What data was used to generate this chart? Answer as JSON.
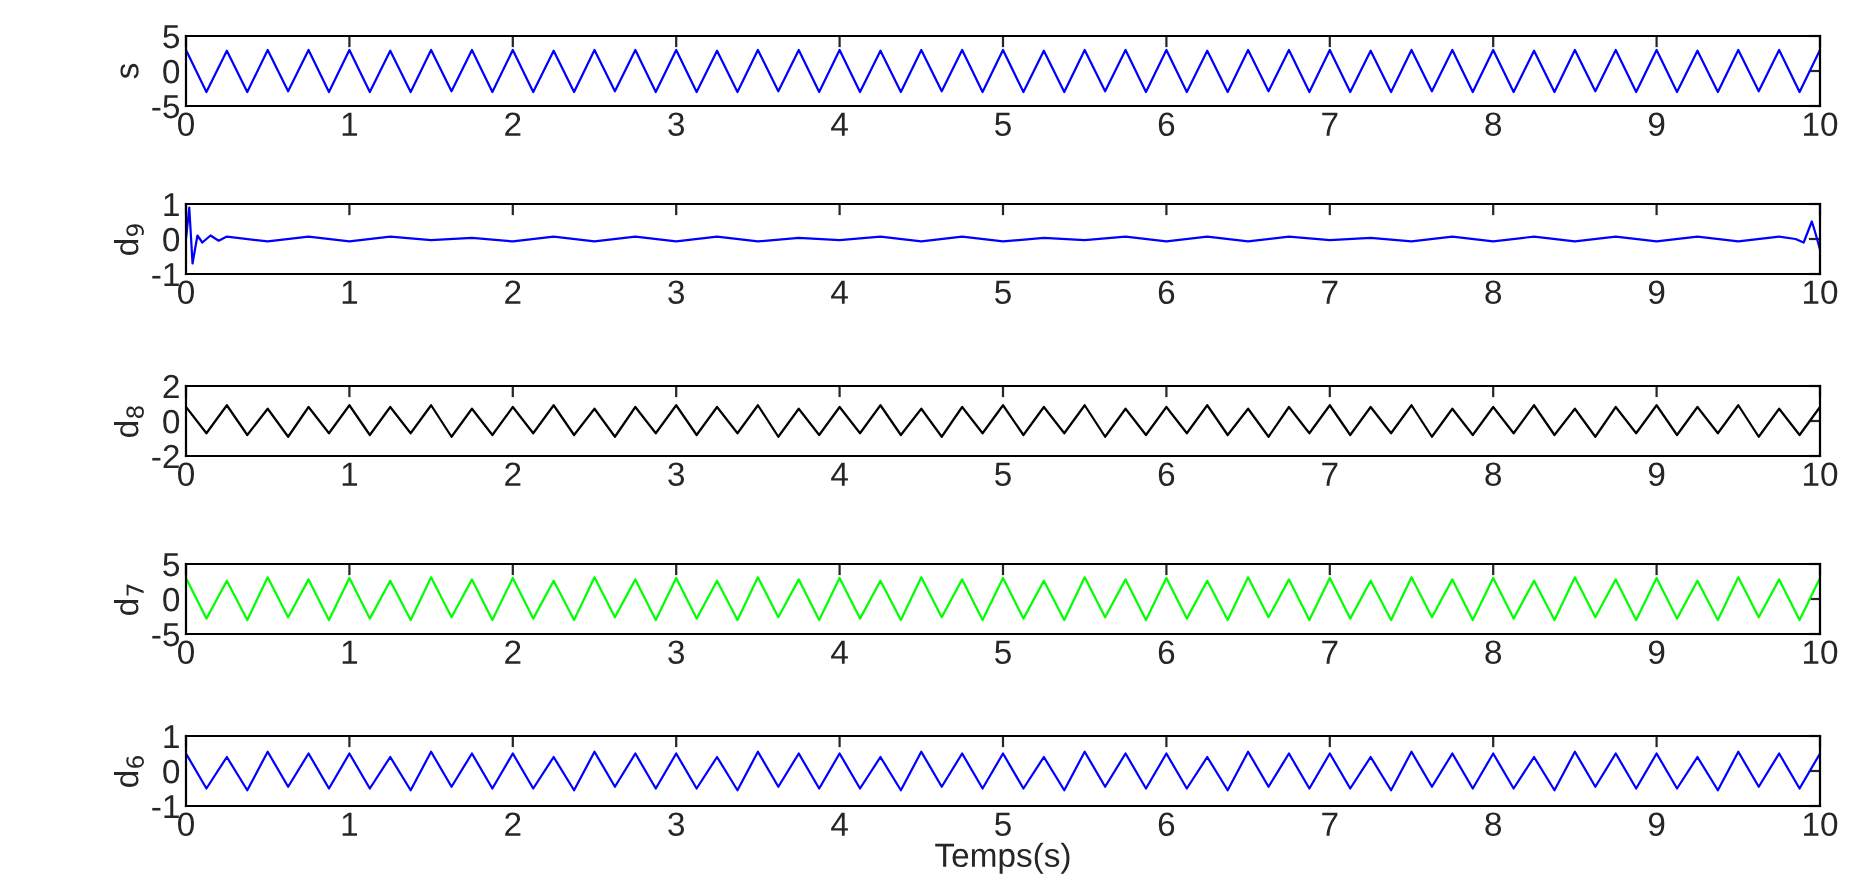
{
  "chart_data": [
    {
      "type": "line",
      "ylabel": "s",
      "xlim": [
        0,
        10
      ],
      "ylim": [
        -5,
        5
      ],
      "xticks": [
        0,
        1,
        2,
        3,
        4,
        5,
        6,
        7,
        8,
        9,
        10
      ],
      "yticks": [
        -5,
        0,
        5
      ],
      "grid": false,
      "x": [
        0,
        0.125,
        0.25,
        0.375,
        0.5,
        0.625,
        0.75,
        0.875,
        1,
        1.125,
        1.25,
        1.375,
        1.5,
        1.625,
        1.75,
        1.875,
        2,
        2.125,
        2.25,
        2.375,
        2.5,
        2.625,
        2.75,
        2.875,
        3,
        3.125,
        3.25,
        3.375,
        3.5,
        3.625,
        3.75,
        3.875,
        4,
        4.125,
        4.25,
        4.375,
        4.5,
        4.625,
        4.75,
        4.875,
        5,
        5.125,
        5.25,
        5.375,
        5.5,
        5.625,
        5.75,
        5.875,
        6,
        6.125,
        6.25,
        6.375,
        6.5,
        6.625,
        6.75,
        6.875,
        7,
        7.125,
        7.25,
        7.375,
        7.5,
        7.625,
        7.75,
        7.875,
        8,
        8.125,
        8.25,
        8.375,
        8.5,
        8.625,
        8.75,
        8.875,
        9,
        9.125,
        9.25,
        9.375,
        9.5,
        9.625,
        9.75,
        9.875,
        10
      ],
      "series": [
        {
          "color": "#0000ff",
          "values": [
            3,
            -3,
            2.9,
            -3,
            3,
            -2.9,
            3,
            -3,
            3,
            -3,
            2.9,
            -3,
            3,
            -2.9,
            3,
            -3,
            3,
            -3,
            2.9,
            -3,
            3,
            -2.9,
            3,
            -3,
            3,
            -3,
            2.9,
            -3,
            3,
            -2.9,
            3,
            -3,
            3,
            -3,
            2.9,
            -3,
            3,
            -2.9,
            3,
            -3,
            3,
            -3,
            2.9,
            -3,
            3,
            -2.9,
            3,
            -3,
            3,
            -3,
            2.9,
            -3,
            3,
            -2.9,
            3,
            -3,
            3,
            -3,
            2.9,
            -3,
            3,
            -2.9,
            3,
            -3,
            3,
            -3,
            2.9,
            -3,
            3,
            -2.9,
            3,
            -3,
            3,
            -3,
            2.9,
            -3,
            3,
            -2.9,
            3,
            -3,
            3
          ]
        }
      ]
    },
    {
      "type": "line",
      "ylabel": "d$_{9}$",
      "xlim": [
        0,
        10
      ],
      "ylim": [
        -1,
        1
      ],
      "xticks": [
        0,
        1,
        2,
        3,
        4,
        5,
        6,
        7,
        8,
        9,
        10
      ],
      "yticks": [
        -1,
        0,
        1
      ],
      "grid": false,
      "x": [
        0,
        0.02,
        0.04,
        0.07,
        0.1,
        0.15,
        0.2,
        0.25,
        0.5,
        0.75,
        1,
        1.25,
        1.5,
        1.75,
        2,
        2.25,
        2.5,
        2.75,
        3,
        3.25,
        3.5,
        3.75,
        4,
        4.25,
        4.5,
        4.75,
        5,
        5.25,
        5.5,
        5.75,
        6,
        6.25,
        6.5,
        6.75,
        7,
        7.25,
        7.5,
        7.75,
        8,
        8.25,
        8.5,
        8.75,
        9,
        9.25,
        9.5,
        9.75,
        9.85,
        9.9,
        9.95,
        9.97,
        10
      ],
      "series": [
        {
          "color": "#0000ff",
          "values": [
            0,
            0.9,
            -0.7,
            0.1,
            -0.1,
            0.1,
            -0.05,
            0.07,
            -0.07,
            0.07,
            -0.07,
            0.07,
            -0.03,
            0.03,
            -0.07,
            0.07,
            -0.07,
            0.07,
            -0.07,
            0.07,
            -0.07,
            0.03,
            -0.03,
            0.07,
            -0.07,
            0.07,
            -0.07,
            0.03,
            -0.03,
            0.07,
            -0.07,
            0.07,
            -0.07,
            0.07,
            -0.03,
            0.03,
            -0.07,
            0.07,
            -0.07,
            0.07,
            -0.07,
            0.07,
            -0.07,
            0.07,
            -0.07,
            0.07,
            0,
            -0.1,
            0.5,
            0.2,
            -0.3
          ]
        }
      ]
    },
    {
      "type": "line",
      "ylabel": "d$_{8}$",
      "xlim": [
        0,
        10
      ],
      "ylim": [
        -2,
        2
      ],
      "xticks": [
        0,
        1,
        2,
        3,
        4,
        5,
        6,
        7,
        8,
        9,
        10
      ],
      "yticks": [
        -2,
        0,
        2
      ],
      "grid": false,
      "x": [
        0,
        0.125,
        0.25,
        0.375,
        0.5,
        0.625,
        0.75,
        0.875,
        1,
        1.125,
        1.25,
        1.375,
        1.5,
        1.625,
        1.75,
        1.875,
        2,
        2.125,
        2.25,
        2.375,
        2.5,
        2.625,
        2.75,
        2.875,
        3,
        3.125,
        3.25,
        3.375,
        3.5,
        3.625,
        3.75,
        3.875,
        4,
        4.125,
        4.25,
        4.375,
        4.5,
        4.625,
        4.75,
        4.875,
        5,
        5.125,
        5.25,
        5.375,
        5.5,
        5.625,
        5.75,
        5.875,
        6,
        6.125,
        6.25,
        6.375,
        6.5,
        6.625,
        6.75,
        6.875,
        7,
        7.125,
        7.25,
        7.375,
        7.5,
        7.625,
        7.75,
        7.875,
        8,
        8.125,
        8.25,
        8.375,
        8.5,
        8.625,
        8.75,
        8.875,
        9,
        9.125,
        9.25,
        9.375,
        9.5,
        9.625,
        9.75,
        9.875,
        10
      ],
      "series": [
        {
          "color": "#000000",
          "values": [
            0.8,
            -0.7,
            0.9,
            -0.8,
            0.7,
            -0.9,
            0.8,
            -0.7,
            0.9,
            -0.8,
            0.8,
            -0.7,
            0.9,
            -0.9,
            0.7,
            -0.8,
            0.8,
            -0.7,
            0.9,
            -0.8,
            0.7,
            -0.9,
            0.8,
            -0.7,
            0.9,
            -0.8,
            0.8,
            -0.7,
            0.9,
            -0.9,
            0.7,
            -0.8,
            0.8,
            -0.7,
            0.9,
            -0.8,
            0.7,
            -0.9,
            0.8,
            -0.7,
            0.9,
            -0.8,
            0.8,
            -0.7,
            0.9,
            -0.9,
            0.7,
            -0.8,
            0.8,
            -0.7,
            0.9,
            -0.8,
            0.7,
            -0.9,
            0.8,
            -0.7,
            0.9,
            -0.8,
            0.8,
            -0.7,
            0.9,
            -0.9,
            0.7,
            -0.8,
            0.8,
            -0.7,
            0.9,
            -0.8,
            0.7,
            -0.9,
            0.8,
            -0.7,
            0.9,
            -0.8,
            0.8,
            -0.7,
            0.9,
            -0.9,
            0.7,
            -0.8,
            0.8
          ]
        }
      ]
    },
    {
      "type": "line",
      "ylabel": "d$_{7}$",
      "xlim": [
        0,
        10
      ],
      "ylim": [
        -5,
        5
      ],
      "xticks": [
        0,
        1,
        2,
        3,
        4,
        5,
        6,
        7,
        8,
        9,
        10
      ],
      "yticks": [
        -5,
        0,
        5
      ],
      "grid": false,
      "x": [
        0,
        0.125,
        0.25,
        0.375,
        0.5,
        0.625,
        0.75,
        0.875,
        1,
        1.125,
        1.25,
        1.375,
        1.5,
        1.625,
        1.75,
        1.875,
        2,
        2.125,
        2.25,
        2.375,
        2.5,
        2.625,
        2.75,
        2.875,
        3,
        3.125,
        3.25,
        3.375,
        3.5,
        3.625,
        3.75,
        3.875,
        4,
        4.125,
        4.25,
        4.375,
        4.5,
        4.625,
        4.75,
        4.875,
        5,
        5.125,
        5.25,
        5.375,
        5.5,
        5.625,
        5.75,
        5.875,
        6,
        6.125,
        6.25,
        6.375,
        6.5,
        6.625,
        6.75,
        6.875,
        7,
        7.125,
        7.25,
        7.375,
        7.5,
        7.625,
        7.75,
        7.875,
        8,
        8.125,
        8.25,
        8.375,
        8.5,
        8.625,
        8.75,
        8.875,
        9,
        9.125,
        9.25,
        9.375,
        9.5,
        9.625,
        9.75,
        9.875,
        10
      ],
      "series": [
        {
          "color": "#00ff00",
          "values": [
            3,
            -2.8,
            2.6,
            -3,
            3.1,
            -2.6,
            2.8,
            -3,
            3,
            -2.8,
            2.6,
            -3,
            3.1,
            -2.6,
            2.8,
            -3,
            3,
            -2.8,
            2.6,
            -3,
            3.1,
            -2.6,
            2.8,
            -3,
            3,
            -2.8,
            2.6,
            -3,
            3.1,
            -2.6,
            2.8,
            -3,
            3,
            -2.8,
            2.6,
            -3,
            3.1,
            -2.6,
            2.8,
            -3,
            3,
            -2.8,
            2.6,
            -3,
            3.1,
            -2.6,
            2.8,
            -3,
            3,
            -2.8,
            2.6,
            -3,
            3.1,
            -2.6,
            2.8,
            -3,
            3,
            -2.8,
            2.6,
            -3,
            3.1,
            -2.6,
            2.8,
            -3,
            3,
            -2.8,
            2.6,
            -3,
            3.1,
            -2.6,
            2.8,
            -3,
            3,
            -2.8,
            2.6,
            -3,
            3.1,
            -2.6,
            2.8,
            -3,
            3
          ]
        }
      ]
    },
    {
      "type": "line",
      "ylabel": "d$_{6}$",
      "xlabel": "Temps(s)",
      "xlim": [
        0,
        10
      ],
      "ylim": [
        -1,
        1
      ],
      "xticks": [
        0,
        1,
        2,
        3,
        4,
        5,
        6,
        7,
        8,
        9,
        10
      ],
      "yticks": [
        -1,
        0,
        1
      ],
      "grid": false,
      "x": [
        0,
        0.125,
        0.25,
        0.375,
        0.5,
        0.625,
        0.75,
        0.875,
        1,
        1.125,
        1.25,
        1.375,
        1.5,
        1.625,
        1.75,
        1.875,
        2,
        2.125,
        2.25,
        2.375,
        2.5,
        2.625,
        2.75,
        2.875,
        3,
        3.125,
        3.25,
        3.375,
        3.5,
        3.625,
        3.75,
        3.875,
        4,
        4.125,
        4.25,
        4.375,
        4.5,
        4.625,
        4.75,
        4.875,
        5,
        5.125,
        5.25,
        5.375,
        5.5,
        5.625,
        5.75,
        5.875,
        6,
        6.125,
        6.25,
        6.375,
        6.5,
        6.625,
        6.75,
        6.875,
        7,
        7.125,
        7.25,
        7.375,
        7.5,
        7.625,
        7.75,
        7.875,
        8,
        8.125,
        8.25,
        8.375,
        8.5,
        8.625,
        8.75,
        8.875,
        9,
        9.125,
        9.25,
        9.375,
        9.5,
        9.625,
        9.75,
        9.875,
        10
      ],
      "series": [
        {
          "color": "#0000ff",
          "values": [
            0.5,
            -0.5,
            0.4,
            -0.55,
            0.55,
            -0.45,
            0.5,
            -0.5,
            0.5,
            -0.5,
            0.4,
            -0.55,
            0.55,
            -0.45,
            0.5,
            -0.5,
            0.5,
            -0.5,
            0.4,
            -0.55,
            0.55,
            -0.45,
            0.5,
            -0.5,
            0.5,
            -0.5,
            0.4,
            -0.55,
            0.55,
            -0.45,
            0.5,
            -0.5,
            0.5,
            -0.5,
            0.4,
            -0.55,
            0.55,
            -0.45,
            0.5,
            -0.5,
            0.5,
            -0.5,
            0.4,
            -0.55,
            0.55,
            -0.45,
            0.5,
            -0.5,
            0.5,
            -0.5,
            0.4,
            -0.55,
            0.55,
            -0.45,
            0.5,
            -0.5,
            0.5,
            -0.5,
            0.4,
            -0.55,
            0.55,
            -0.45,
            0.5,
            -0.5,
            0.5,
            -0.5,
            0.4,
            -0.55,
            0.55,
            -0.45,
            0.5,
            -0.5,
            0.5,
            -0.5,
            0.4,
            -0.55,
            0.55,
            -0.45,
            0.5,
            -0.5,
            0.5
          ]
        }
      ]
    }
  ]
}
